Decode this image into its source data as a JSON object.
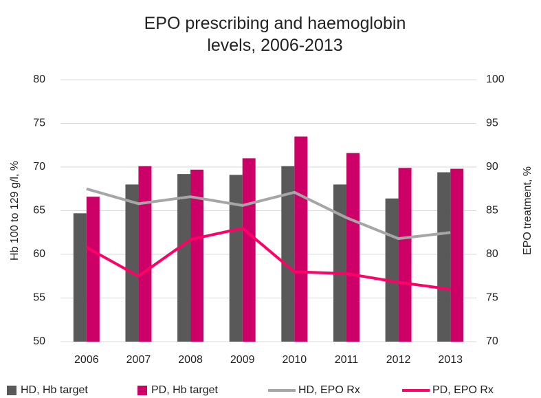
{
  "chart_data": {
    "type": "bar",
    "title": "EPO prescribing and haemoglobin levels, 2006-2013",
    "ylabel": "Hb 100 to 129 g/l, %",
    "y2label": "EPO treatment, %",
    "categories": [
      "2006",
      "2007",
      "2008",
      "2009",
      "2010",
      "2011",
      "2012",
      "2013"
    ],
    "series": [
      {
        "name": "HD, Hb target",
        "type": "bar",
        "color": "#595959",
        "values": [
          64.7,
          68.0,
          69.2,
          69.1,
          70.1,
          68.0,
          66.4,
          69.4
        ]
      },
      {
        "name": "PD, Hb target",
        "type": "bar",
        "color": "#cc0066",
        "values": [
          66.6,
          70.1,
          69.7,
          71.0,
          73.5,
          71.6,
          69.9,
          69.8
        ]
      },
      {
        "name": "HD, EPO Rx",
        "type": "line",
        "axis": "y2",
        "color": "#a6a6a6",
        "values": [
          87.5,
          85.8,
          86.6,
          85.6,
          87.1,
          84.2,
          81.8,
          82.5
        ]
      },
      {
        "name": "PD, EPO Rx",
        "type": "line",
        "axis": "y2",
        "color": "#ff0066",
        "values": [
          80.8,
          77.5,
          81.7,
          83.0,
          78.0,
          77.8,
          76.8,
          76.0
        ]
      }
    ],
    "ylim": [
      50,
      80
    ],
    "yticks": [
      50,
      55,
      60,
      65,
      70,
      75,
      80
    ],
    "y2lim": [
      70,
      100
    ],
    "y2ticks": [
      70,
      75,
      80,
      85,
      90,
      95,
      100
    ],
    "grid": true,
    "legend": "bottom"
  }
}
